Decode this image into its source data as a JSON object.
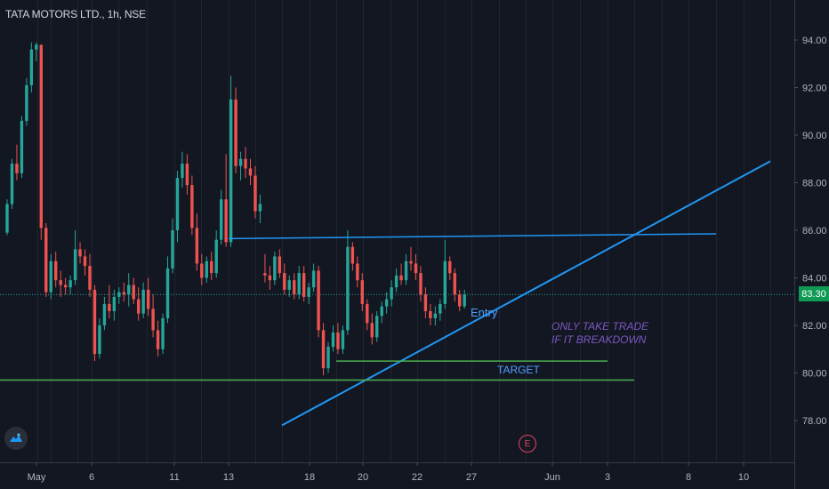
{
  "header": {
    "title": "TATA MOTORS LTD., 1h, NSE"
  },
  "last_price": {
    "label": "83.30",
    "value": 83.3
  },
  "annotations": {
    "entry": "Entry",
    "note_line1": "ONLY TAKE TRADE",
    "note_line2": "IF IT BREAKDOWN",
    "target": "TARGET"
  },
  "earnings_badge": "E",
  "colors": {
    "background": "#131722",
    "up": "#26a69a",
    "down": "#ef5350",
    "trendline": "#2196f3",
    "target_line": "#4caf50",
    "last_price": "#0e9a52",
    "note": "#7e57c2"
  },
  "chart_data": {
    "type": "candlestick",
    "title": "TATA MOTORS LTD., 1h, NSE",
    "xlabel": "",
    "ylabel": "",
    "ylim": [
      75.3,
      96
    ],
    "y_ticks": [
      "78.00",
      "80.00",
      "82.00",
      "84.00",
      "86.00",
      "88.00",
      "90.00",
      "92.00",
      "94.00"
    ],
    "x_ticks": [
      "May",
      "6",
      "11",
      "13",
      "18",
      "20",
      "22",
      "27",
      "Jun",
      "3",
      "8",
      "10"
    ],
    "grid": "vertical",
    "last_value": 83.3,
    "candles": [
      [
        85.9,
        87.3,
        85.8,
        87.1
      ],
      [
        87.1,
        89.0,
        86.9,
        88.8
      ],
      [
        88.8,
        89.6,
        88.1,
        88.4
      ],
      [
        88.4,
        90.8,
        88.2,
        90.6
      ],
      [
        90.6,
        92.4,
        90.4,
        92.1
      ],
      [
        92.1,
        93.9,
        91.8,
        93.6
      ],
      [
        93.6,
        93.9,
        93.1,
        93.8
      ],
      [
        93.8,
        93.8,
        85.6,
        86.1
      ],
      [
        86.1,
        86.3,
        83.2,
        83.4
      ],
      [
        83.4,
        85.0,
        83.1,
        84.7
      ],
      [
        84.7,
        85.1,
        83.6,
        83.9
      ],
      [
        83.9,
        84.3,
        83.2,
        83.7
      ],
      [
        83.7,
        84.0,
        83.3,
        83.6
      ],
      [
        83.6,
        84.1,
        83.3,
        83.9
      ],
      [
        83.9,
        86.0,
        83.7,
        85.2
      ],
      [
        85.2,
        85.5,
        84.6,
        84.9
      ],
      [
        84.9,
        85.2,
        84.1,
        84.5
      ],
      [
        84.5,
        85.0,
        83.2,
        83.5
      ],
      [
        83.5,
        83.7,
        80.5,
        80.8
      ],
      [
        80.8,
        82.3,
        80.6,
        82.0
      ],
      [
        82.0,
        83.2,
        81.8,
        82.9
      ],
      [
        82.9,
        83.7,
        82.3,
        82.6
      ],
      [
        82.6,
        83.5,
        82.2,
        83.2
      ],
      [
        83.2,
        83.6,
        82.9,
        83.4
      ],
      [
        83.4,
        83.8,
        83.0,
        83.3
      ],
      [
        83.3,
        84.2,
        82.8,
        83.7
      ],
      [
        83.7,
        84.0,
        82.9,
        83.1
      ],
      [
        83.1,
        83.6,
        82.2,
        82.5
      ],
      [
        82.5,
        83.8,
        82.3,
        83.5
      ],
      [
        83.5,
        84.0,
        82.4,
        82.7
      ],
      [
        82.7,
        83.3,
        81.5,
        81.8
      ],
      [
        81.8,
        82.2,
        80.7,
        81.0
      ],
      [
        81.0,
        82.5,
        80.8,
        82.3
      ],
      [
        82.3,
        84.9,
        82.1,
        84.4
      ],
      [
        84.4,
        86.5,
        84.2,
        86.0
      ],
      [
        86.0,
        88.5,
        85.5,
        88.2
      ],
      [
        88.2,
        89.3,
        87.8,
        88.8
      ],
      [
        88.8,
        89.2,
        87.5,
        87.9
      ],
      [
        87.9,
        88.3,
        85.8,
        86.1
      ],
      [
        86.1,
        86.7,
        84.3,
        84.6
      ],
      [
        84.6,
        85.0,
        83.7,
        84.0
      ],
      [
        84.0,
        84.9,
        83.8,
        84.7
      ],
      [
        84.7,
        85.1,
        83.9,
        84.2
      ],
      [
        84.2,
        86.0,
        84.0,
        85.6
      ],
      [
        85.6,
        87.7,
        85.4,
        87.3
      ],
      [
        87.3,
        89.2,
        85.3,
        85.5
      ],
      [
        85.5,
        92.5,
        85.3,
        91.5
      ],
      [
        91.5,
        92.0,
        88.4,
        88.7
      ],
      [
        88.7,
        89.3,
        88.1,
        89.0
      ],
      [
        89.0,
        89.5,
        88.2,
        88.6
      ],
      [
        88.6,
        89.0,
        87.9,
        88.3
      ],
      [
        88.3,
        88.7,
        86.5,
        86.8
      ],
      [
        86.8,
        87.5,
        86.3,
        87.1
      ],
      [
        84.2,
        85.0,
        83.8,
        84.1
      ],
      [
        84.1,
        84.5,
        83.5,
        83.9
      ],
      [
        83.9,
        85.1,
        83.7,
        84.9
      ],
      [
        84.9,
        85.2,
        84.0,
        84.2
      ],
      [
        84.2,
        84.6,
        83.3,
        83.5
      ],
      [
        83.5,
        84.1,
        83.2,
        83.9
      ],
      [
        83.9,
        84.2,
        83.1,
        83.3
      ],
      [
        83.3,
        84.5,
        83.1,
        84.2
      ],
      [
        84.2,
        84.5,
        83.0,
        83.2
      ],
      [
        83.2,
        83.8,
        82.9,
        83.6
      ],
      [
        83.6,
        84.6,
        83.4,
        84.3
      ],
      [
        84.3,
        84.5,
        81.5,
        81.8
      ],
      [
        81.8,
        82.1,
        79.9,
        80.2
      ],
      [
        80.2,
        81.3,
        80.0,
        81.1
      ],
      [
        81.1,
        82.0,
        80.9,
        81.7
      ],
      [
        81.7,
        82.1,
        80.8,
        81.0
      ],
      [
        81.0,
        82.0,
        80.8,
        81.8
      ],
      [
        81.8,
        86.0,
        81.6,
        85.3
      ],
      [
        85.3,
        85.5,
        84.3,
        84.6
      ],
      [
        84.6,
        84.9,
        83.6,
        83.9
      ],
      [
        83.9,
        84.2,
        82.6,
        82.9
      ],
      [
        82.9,
        83.1,
        81.8,
        82.1
      ],
      [
        82.1,
        82.5,
        81.2,
        81.5
      ],
      [
        81.5,
        82.6,
        81.3,
        82.4
      ],
      [
        82.4,
        83.0,
        82.1,
        82.8
      ],
      [
        82.8,
        83.4,
        82.5,
        83.1
      ],
      [
        83.1,
        83.9,
        82.8,
        83.6
      ],
      [
        83.6,
        84.4,
        83.4,
        84.1
      ],
      [
        84.1,
        84.6,
        83.7,
        83.9
      ],
      [
        83.9,
        85.0,
        83.7,
        84.7
      ],
      [
        84.7,
        85.3,
        84.3,
        84.6
      ],
      [
        84.6,
        85.0,
        83.9,
        84.2
      ],
      [
        84.2,
        84.5,
        83.0,
        83.3
      ],
      [
        83.3,
        83.6,
        82.3,
        82.6
      ],
      [
        82.6,
        82.9,
        82.0,
        82.3
      ],
      [
        82.3,
        82.8,
        82.0,
        82.5
      ],
      [
        82.5,
        83.1,
        82.2,
        82.9
      ],
      [
        82.9,
        85.6,
        82.7,
        84.7
      ],
      [
        84.7,
        84.9,
        83.9,
        84.2
      ],
      [
        84.2,
        84.4,
        83.0,
        83.3
      ],
      [
        83.3,
        83.5,
        82.6,
        82.8
      ],
      [
        82.8,
        83.5,
        82.7,
        83.3
      ]
    ],
    "series": [
      {
        "type": "line",
        "label": "",
        "points": [
          [
            "May 17",
            77.8
          ],
          [
            "Jun 10",
            88.9
          ]
        ]
      },
      {
        "type": "line",
        "label": "",
        "points": [
          [
            "May 13",
            85.65
          ],
          [
            "Jun 8",
            85.85
          ]
        ]
      },
      {
        "type": "line",
        "label": "TARGET",
        "points": [
          [
            "May 19",
            80.5
          ],
          [
            "Jun 2",
            80.5
          ]
        ]
      },
      {
        "type": "line",
        "label": "",
        "points": [
          [
            "Apr 30",
            79.7
          ],
          [
            "Jun 3",
            79.7
          ]
        ]
      }
    ]
  }
}
